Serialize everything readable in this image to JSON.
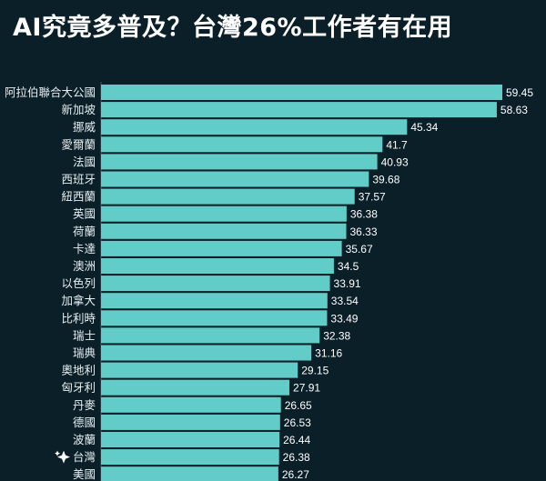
{
  "chart_data": {
    "type": "bar",
    "orientation": "horizontal",
    "title": "AI究竟多普及？台灣26%工作者有在用",
    "xlabel": "",
    "ylabel": "",
    "xlim": [
      0,
      60
    ],
    "grid": false,
    "bar_color": "#62cdc8",
    "background": "#0b1f29",
    "highlight_category": "台灣",
    "highlight_icon": "sparkle-icon",
    "categories": [
      "阿拉伯聯合大公國",
      "新加坡",
      "挪威",
      "愛爾蘭",
      "法國",
      "西班牙",
      "紐西蘭",
      "英國",
      "荷蘭",
      "卡達",
      "澳洲",
      "以色列",
      "加拿大",
      "比利時",
      "瑞士",
      "瑞典",
      "奧地利",
      "匈牙利",
      "丹麥",
      "德國",
      "波蘭",
      "台灣",
      "美國"
    ],
    "values": [
      59.45,
      58.63,
      45.34,
      41.7,
      40.93,
      39.68,
      37.57,
      36.38,
      36.33,
      35.67,
      34.5,
      33.91,
      33.54,
      33.49,
      32.38,
      31.16,
      29.15,
      27.91,
      26.65,
      26.53,
      26.44,
      26.38,
      26.27
    ],
    "value_labels": [
      "59.45",
      "58.63",
      "45.34",
      "41.7",
      "40.93",
      "39.68",
      "37.57",
      "36.38",
      "36.33",
      "35.67",
      "34.5",
      "33.91",
      "33.54",
      "33.49",
      "32.38",
      "31.16",
      "29.15",
      "27.91",
      "26.65",
      "26.53",
      "26.44",
      "26.38",
      "26.27"
    ]
  }
}
